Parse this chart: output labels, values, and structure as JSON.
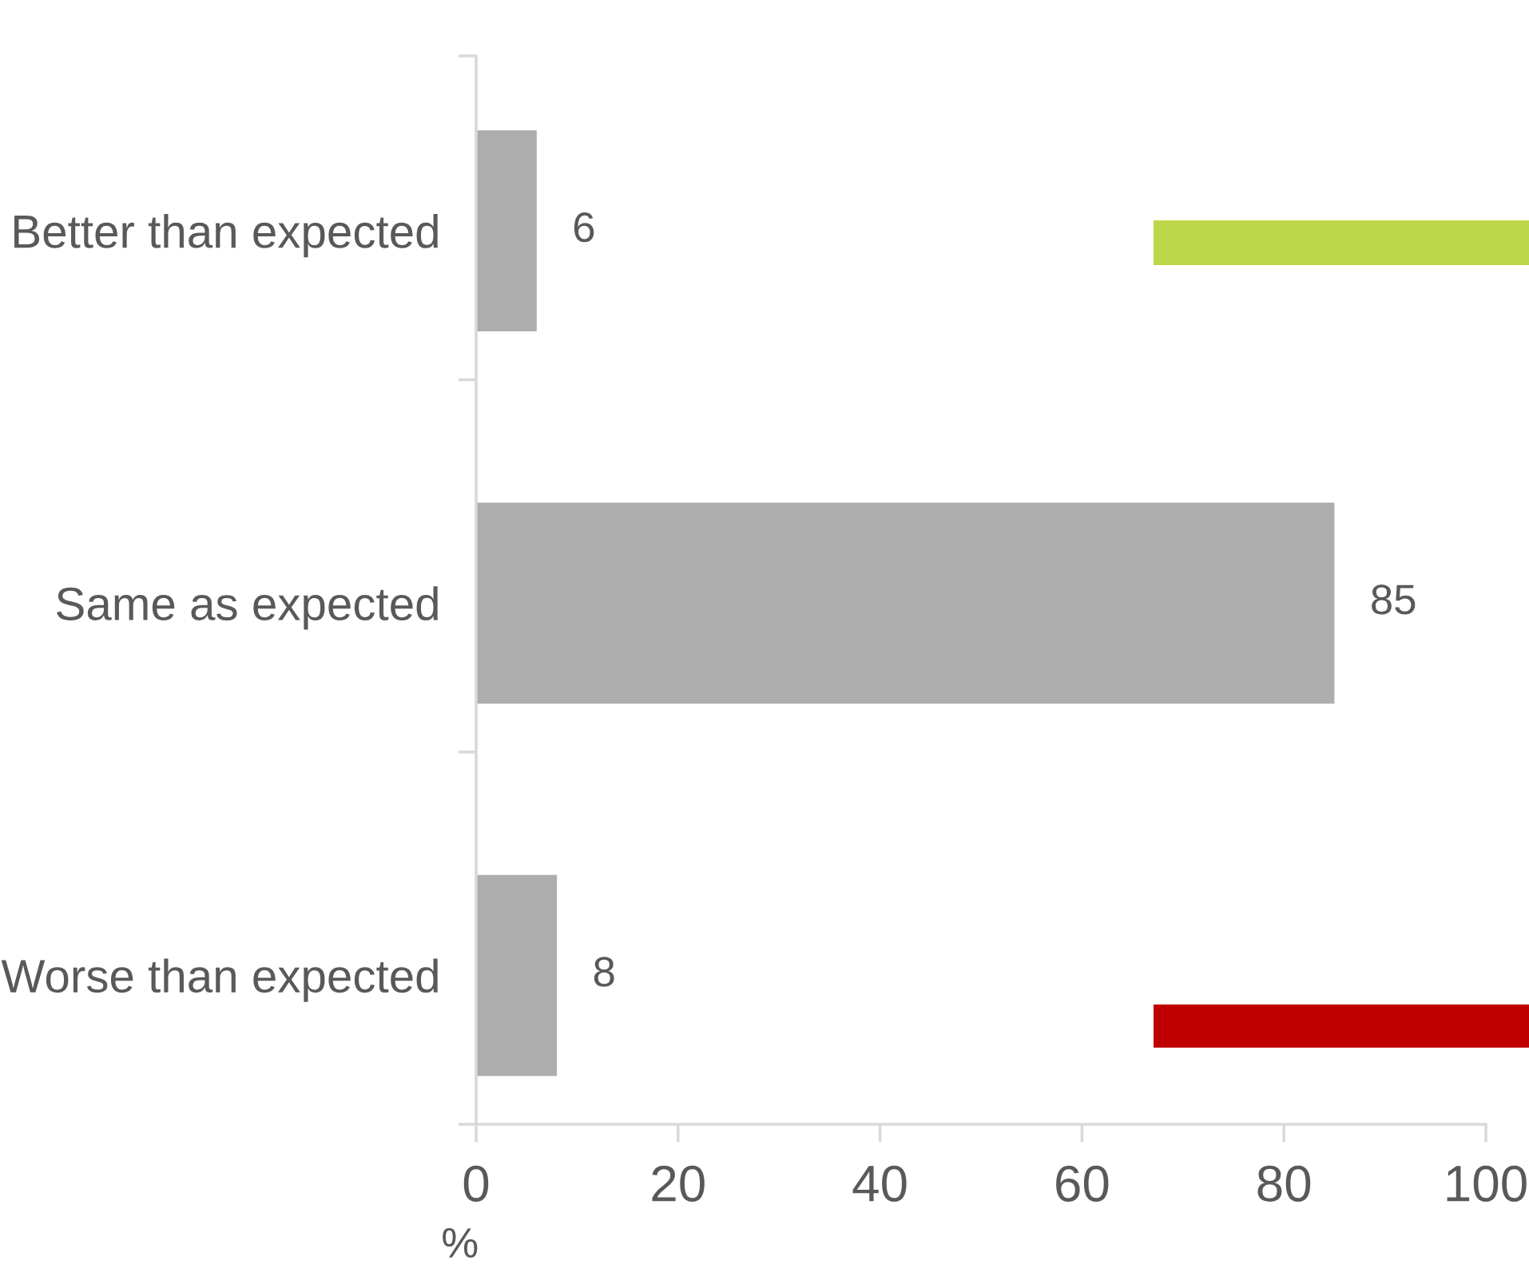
{
  "chart_data": {
    "type": "bar",
    "orientation": "horizontal",
    "categories": [
      "Better than expected",
      "Same as expected",
      "Worse than expected"
    ],
    "values": [
      6,
      85,
      8
    ],
    "color": "#adadad",
    "data_labels": true,
    "xlabel": "%",
    "xlim": [
      0,
      100
    ],
    "xticks": [
      0,
      20,
      40,
      60,
      80,
      100
    ]
  }
}
